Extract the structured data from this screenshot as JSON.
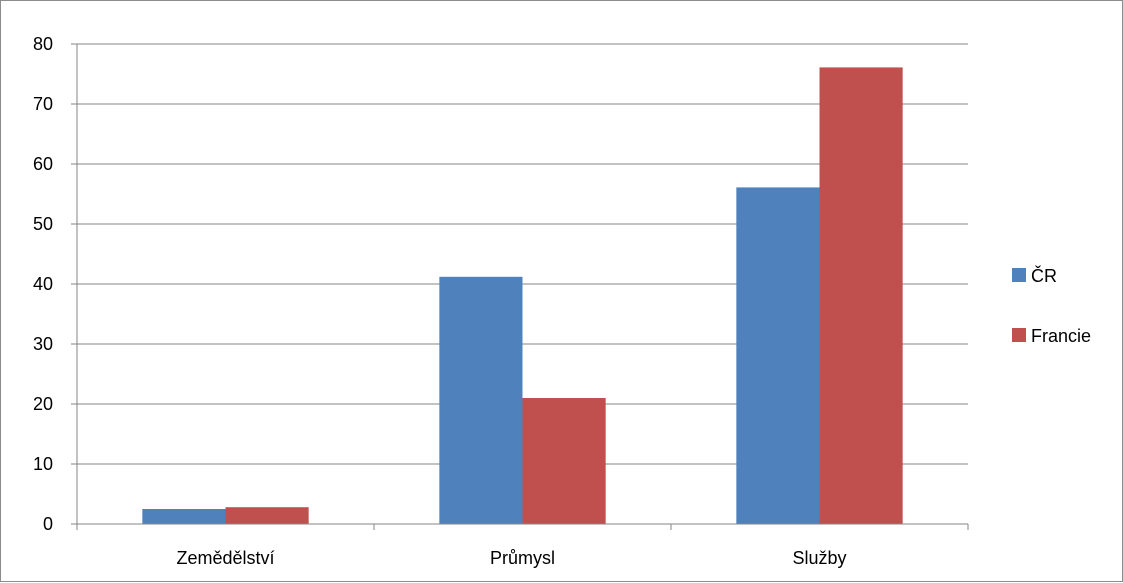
{
  "chart_data": {
    "type": "bar",
    "categories": [
      "Zemědělství",
      "Průmysl",
      "Služby"
    ],
    "series": [
      {
        "name": "ČR",
        "values": [
          2.5,
          41.2,
          56.1
        ],
        "color": "#4F81BD"
      },
      {
        "name": "Francie",
        "values": [
          2.8,
          21.0,
          76.1
        ],
        "color": "#C0504D"
      }
    ],
    "title": "",
    "xlabel": "",
    "ylabel": "",
    "ylim": [
      0,
      80
    ],
    "yticks": [
      0,
      10,
      20,
      30,
      40,
      50,
      60,
      70,
      80
    ],
    "grid": true,
    "legend_position": "right",
    "grid_color": "#868686"
  }
}
